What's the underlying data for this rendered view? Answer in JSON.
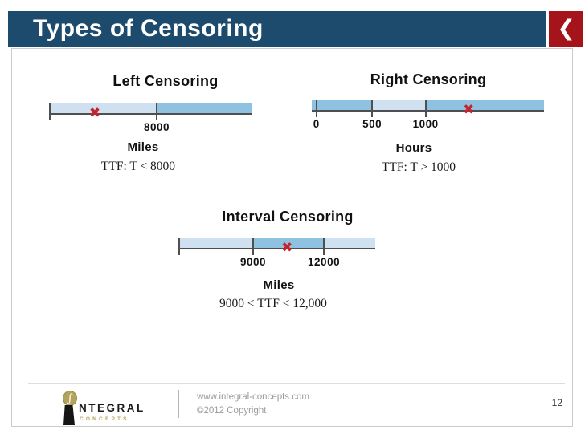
{
  "slide": {
    "title": "Types of Censoring",
    "nav_back_glyph": "❮",
    "page_number": "12"
  },
  "glyphs": {
    "failure_marker": "✖",
    "integral_symbol": "∫"
  },
  "diagrams": [
    {
      "id": "left-censoring",
      "type": "number-line",
      "heading": "Left Censoring",
      "unit": "Miles",
      "formula": "TTF:  T < 8000",
      "segments": [
        {
          "from": 0.0,
          "to": 0.53,
          "shade": "light"
        },
        {
          "from": 0.53,
          "to": 1.0,
          "shade": "medium"
        }
      ],
      "ticks": [
        {
          "pos": 0.0,
          "label": ""
        },
        {
          "pos": 0.53,
          "label": "8000"
        }
      ],
      "failure_marker_pos": 0.223
    },
    {
      "id": "right-censoring",
      "type": "number-line",
      "heading": "Right Censoring",
      "unit": "Hours",
      "formula": "TTF:  T > 1000",
      "segments": [
        {
          "from": 0.0,
          "to": 0.26,
          "shade": "medium"
        },
        {
          "from": 0.26,
          "to": 0.49,
          "shade": "light"
        },
        {
          "from": 0.49,
          "to": 1.0,
          "shade": "medium"
        }
      ],
      "ticks": [
        {
          "pos": 0.02,
          "label": "0"
        },
        {
          "pos": 0.26,
          "label": "500"
        },
        {
          "pos": 0.49,
          "label": "1000"
        }
      ],
      "failure_marker_pos": 0.675
    },
    {
      "id": "interval-censoring",
      "type": "number-line",
      "heading": "Interval Censoring",
      "unit": "Miles",
      "formula": "9000 < TTF < 12,000",
      "segments": [
        {
          "from": 0.0,
          "to": 0.377,
          "shade": "light"
        },
        {
          "from": 0.377,
          "to": 0.738,
          "shade": "medium"
        },
        {
          "from": 0.738,
          "to": 1.0,
          "shade": "light"
        }
      ],
      "ticks": [
        {
          "pos": 0.0,
          "label": ""
        },
        {
          "pos": 0.377,
          "label": "9000"
        },
        {
          "pos": 0.738,
          "label": "12000"
        }
      ],
      "failure_marker_pos": 0.55
    }
  ],
  "footer": {
    "website": "www.integral-concepts.com",
    "copyright": "©2012 Copyright",
    "logo_text_main": "NTEGRAL",
    "logo_text_sub": "CONCEPTS"
  },
  "colors": {
    "title_bar": "#1d4b6d",
    "back_button": "#a5131b",
    "bar_light": "#cfe0f0",
    "bar_medium": "#8fc1e0",
    "baseline": "#4f4f4f",
    "marker_red": "#c7232c",
    "logo_gold": "#b3a35c"
  }
}
